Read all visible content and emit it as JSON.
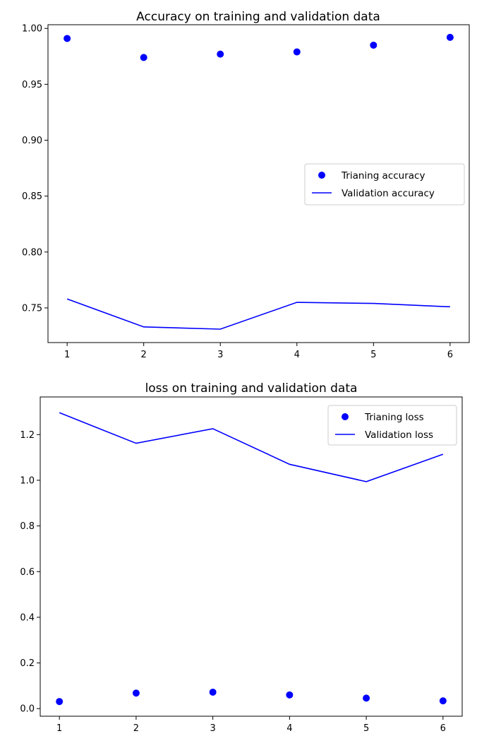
{
  "chart_data": [
    {
      "type": "scatter+line",
      "title": "Accuracy on training and validation data",
      "xlabel": "",
      "ylabel": "",
      "x": [
        1,
        2,
        3,
        4,
        5,
        6
      ],
      "xticks": [
        "1",
        "2",
        "3",
        "4",
        "5",
        "6"
      ],
      "yticks": [
        "0.75",
        "0.80",
        "0.85",
        "0.90",
        "0.95",
        "1.00"
      ],
      "ylim": [
        0.719,
        1.0033
      ],
      "xlim": [
        0.75,
        6.25
      ],
      "legend_position": "center-right",
      "series": [
        {
          "name": "Trianing accuracy",
          "style": "points",
          "color": "#0000ff",
          "values": [
            0.991,
            0.974,
            0.977,
            0.979,
            0.985,
            0.992
          ]
        },
        {
          "name": "Validation accuracy",
          "style": "line",
          "color": "#0000ff",
          "values": [
            0.758,
            0.733,
            0.731,
            0.755,
            0.754,
            0.751
          ]
        }
      ]
    },
    {
      "type": "scatter+line",
      "title": "loss on training and validation data",
      "xlabel": "",
      "ylabel": "",
      "x": [
        1,
        2,
        3,
        4,
        5,
        6
      ],
      "xticks": [
        "1",
        "2",
        "3",
        "4",
        "5",
        "6"
      ],
      "yticks": [
        "0.0",
        "0.2",
        "0.4",
        "0.6",
        "0.8",
        "1.0",
        "1.2"
      ],
      "ylim": [
        -0.0333,
        1.3649
      ],
      "xlim": [
        0.75,
        6.25
      ],
      "legend_position": "top-right",
      "series": [
        {
          "name": "Trianing loss",
          "style": "points",
          "color": "#0000ff",
          "values": [
            0.031,
            0.068,
            0.072,
            0.06,
            0.046,
            0.034
          ]
        },
        {
          "name": "Validation loss",
          "style": "line",
          "color": "#0000ff",
          "values": [
            1.296,
            1.162,
            1.226,
            1.07,
            0.994,
            1.114
          ]
        }
      ]
    }
  ]
}
